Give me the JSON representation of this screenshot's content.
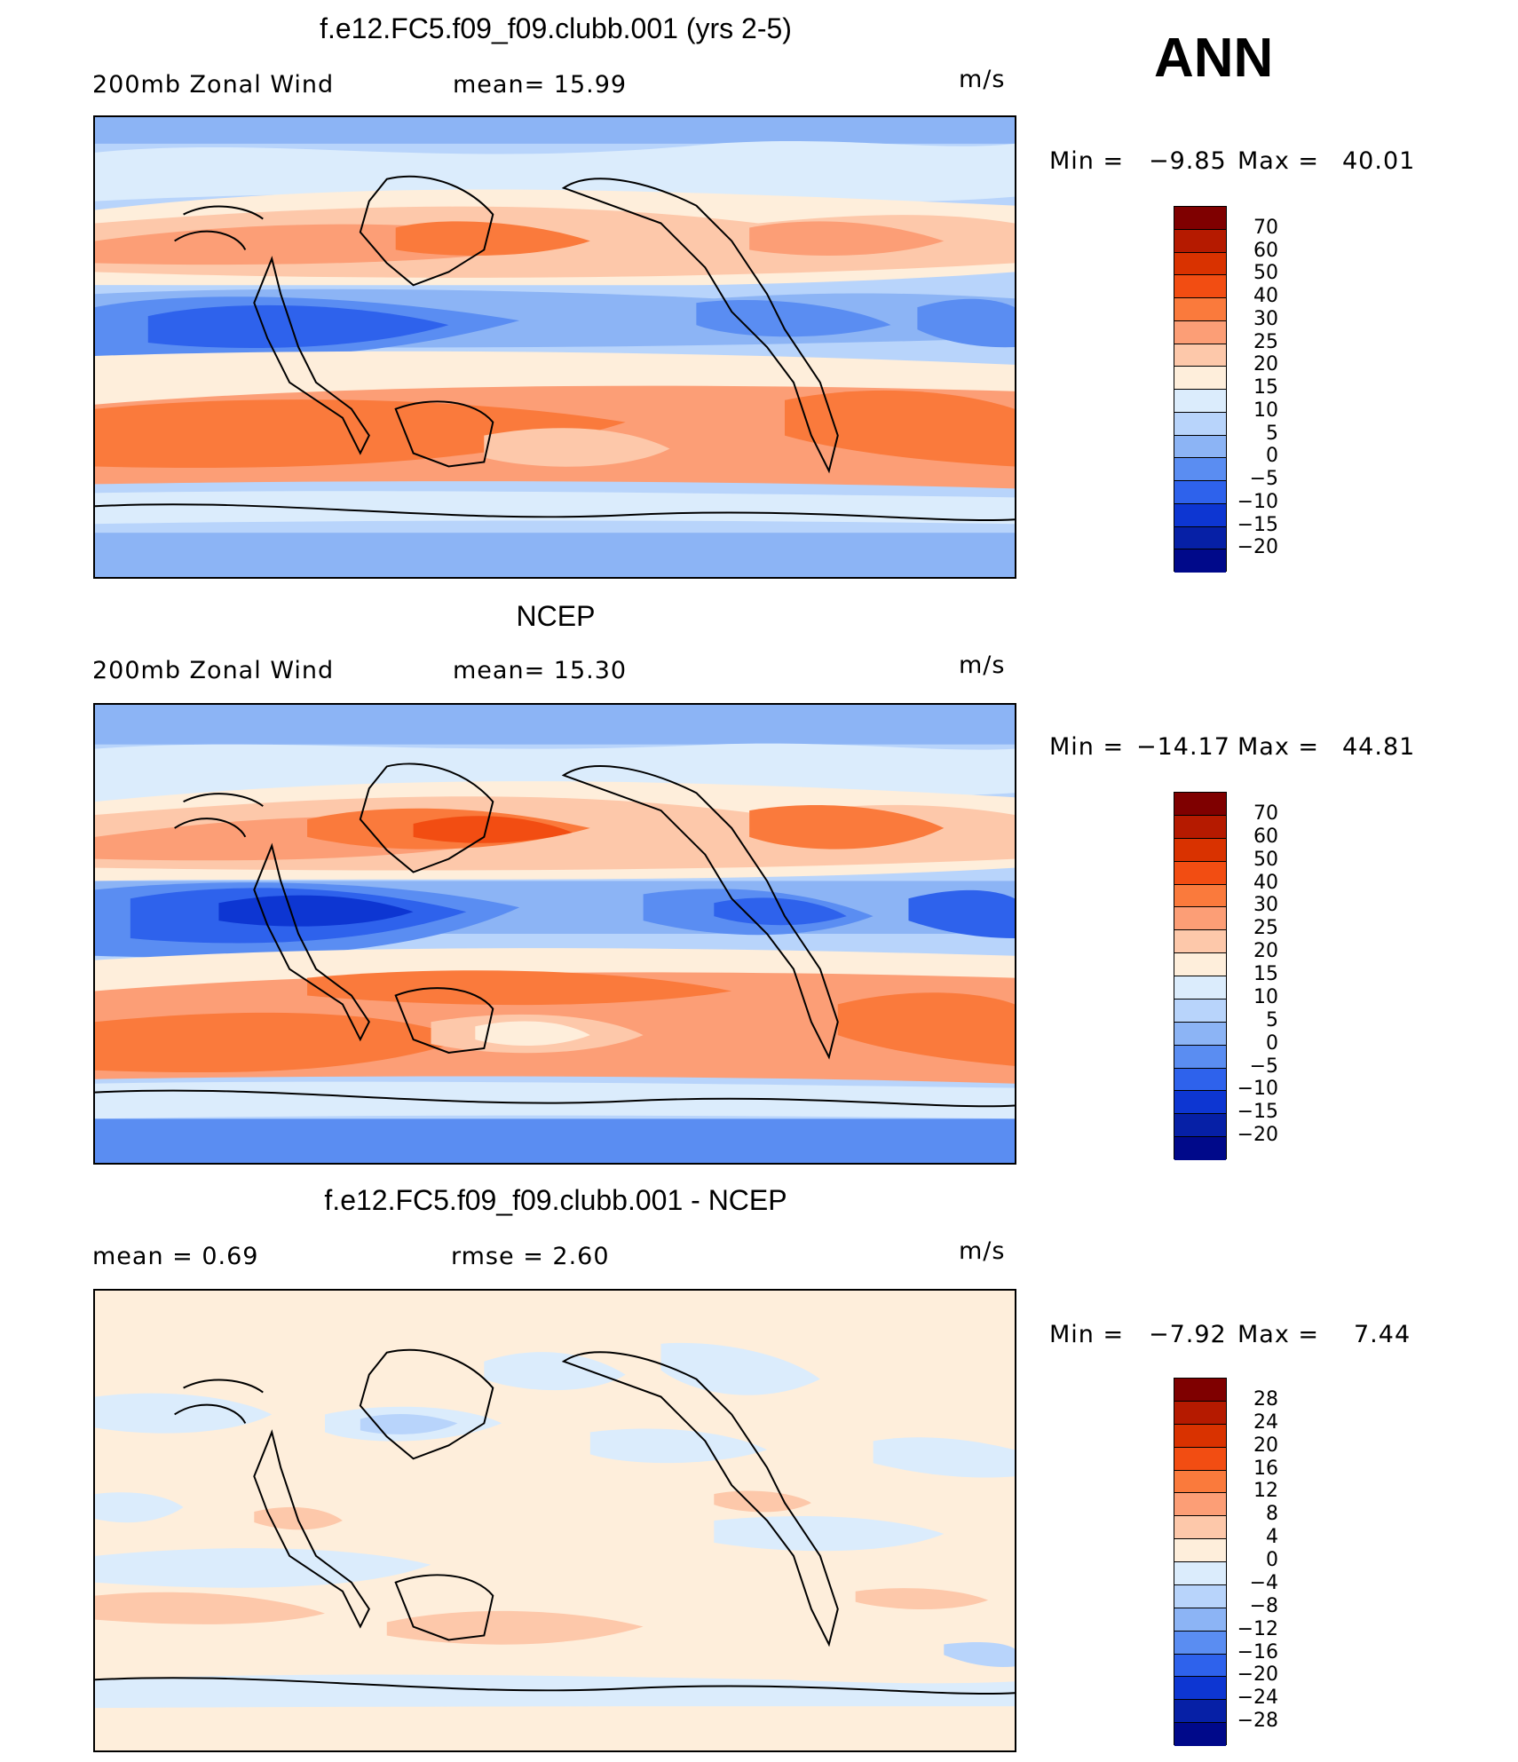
{
  "season": "ANN",
  "panels": [
    {
      "title": "f.e12.FC5.f09_f09.clubb.001 (yrs 2-5)",
      "left_text": "200mb  Zonal  Wind",
      "center_text": "mean=   15.99",
      "units": "m/s",
      "min_label": "Min  =",
      "min_value": "−9.85",
      "max_label": "Max  =",
      "max_value": "40.01",
      "colorbar": {
        "levels": [
          "70",
          "60",
          "50",
          "40",
          "30",
          "25",
          "20",
          "15",
          "10",
          "5",
          "0",
          "−5",
          "−10",
          "−15",
          "−20"
        ],
        "colors": [
          "#7f0000",
          "#b51a00",
          "#d93200",
          "#f24d12",
          "#fa7a3c",
          "#fc9e76",
          "#fdc8aa",
          "#feeedb",
          "#dbecfc",
          "#b8d4fb",
          "#8cb4f5",
          "#5a8df2",
          "#2e62ec",
          "#0d36d2",
          "#0620a6",
          "#00098a"
        ]
      }
    },
    {
      "title": "NCEP",
      "left_text": "200mb  Zonal  Wind",
      "center_text": "mean=   15.30",
      "units": "m/s",
      "min_label": "Min  =",
      "min_value": "−14.17",
      "max_label": "Max  =",
      "max_value": "44.81",
      "colorbar": {
        "levels": [
          "70",
          "60",
          "50",
          "40",
          "30",
          "25",
          "20",
          "15",
          "10",
          "5",
          "0",
          "−5",
          "−10",
          "−15",
          "−20"
        ],
        "colors": [
          "#7f0000",
          "#b51a00",
          "#d93200",
          "#f24d12",
          "#fa7a3c",
          "#fc9e76",
          "#fdc8aa",
          "#feeedb",
          "#dbecfc",
          "#b8d4fb",
          "#8cb4f5",
          "#5a8df2",
          "#2e62ec",
          "#0d36d2",
          "#0620a6",
          "#00098a"
        ]
      }
    },
    {
      "title": "f.e12.FC5.f09_f09.clubb.001 - NCEP",
      "left_text": "mean  =     0.69",
      "center_text": "rmse  =     2.60",
      "units": "m/s",
      "min_label": "Min  =",
      "min_value": "−7.92",
      "max_label": "Max  =",
      "max_value": "7.44",
      "colorbar": {
        "levels": [
          "28",
          "24",
          "20",
          "16",
          "12",
          "8",
          "4",
          "0",
          "−4",
          "−8",
          "−12",
          "−16",
          "−20",
          "−24",
          "−28"
        ],
        "colors": [
          "#7f0000",
          "#b51a00",
          "#d93200",
          "#f24d12",
          "#fa7a3c",
          "#fc9e76",
          "#fdc8aa",
          "#feeedb",
          "#dbecfc",
          "#b8d4fb",
          "#8cb4f5",
          "#5a8df2",
          "#2e62ec",
          "#0d36d2",
          "#0620a6",
          "#00098a"
        ]
      }
    }
  ]
}
